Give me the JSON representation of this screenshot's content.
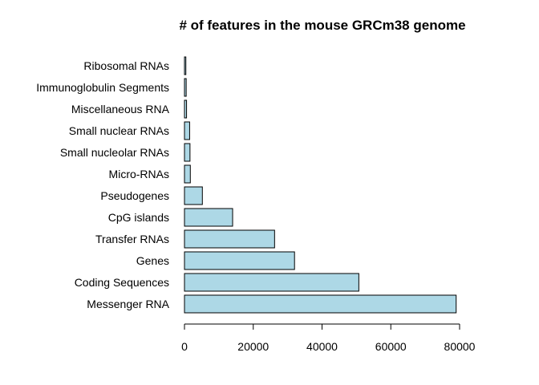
{
  "chart_data": {
    "type": "bar",
    "orientation": "horizontal",
    "title": "# of features in the mouse GRCm38 genome",
    "xlabel": "",
    "ylabel": "",
    "categories": [
      "Messenger RNA",
      "Coding Sequences",
      "Genes",
      "Transfer RNAs",
      "CpG islands",
      "Pseudogenes",
      "Micro-RNAs",
      "Small nucleolar RNAs",
      "Small nuclear RNAs",
      "Miscellaneous RNA",
      "Immunoglobulin Segments",
      "Ribosomal RNAs"
    ],
    "values": [
      79000,
      50700,
      32000,
      26200,
      14000,
      5200,
      1700,
      1600,
      1500,
      600,
      500,
      400
    ],
    "xlim": [
      0,
      80000
    ],
    "xticks": [
      0,
      20000,
      40000,
      60000,
      80000
    ],
    "bar_color": "#add8e6",
    "grid": false,
    "legend": "none"
  }
}
